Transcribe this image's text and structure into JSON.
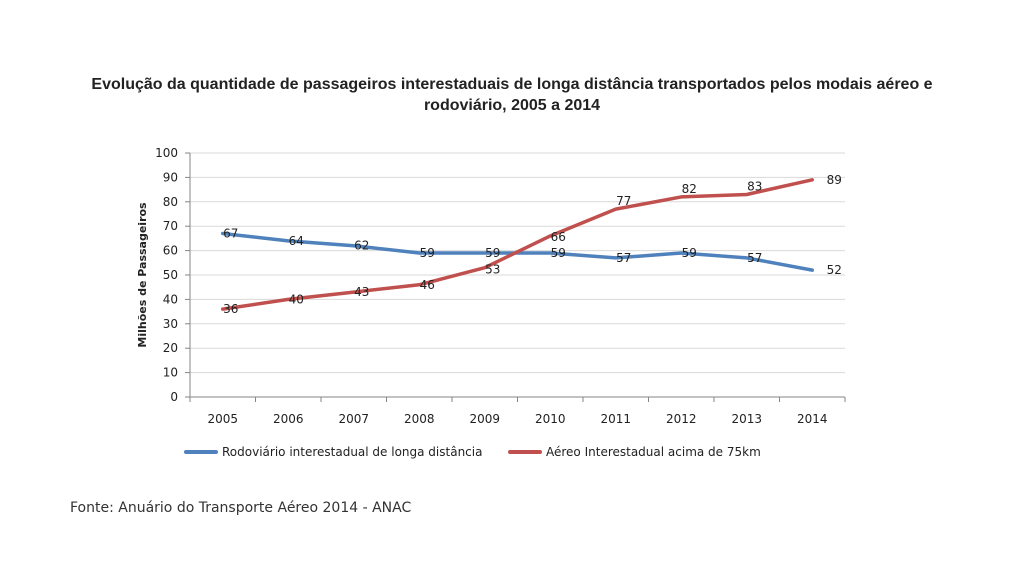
{
  "title_line1": "Evolução da quantidade de passageiros interestaduais de longa distância transportados pelos modais aéreo e",
  "title_line2": "rodoviário, 2005 a 2014",
  "source": "Fonte: Anuário do Transporte Aéreo 2014 - ANAC",
  "colors": {
    "blue": "#4f81bd",
    "red": "#c0504d",
    "grid": "#d9d9d9",
    "axis": "#868686"
  },
  "chart_data": {
    "type": "line",
    "title": "Evolução da quantidade de passageiros interestaduais de longa distância transportados pelos modais aéreo e rodoviário, 2005 a 2014",
    "xlabel": "",
    "ylabel": "Milhões de Passageiros",
    "categories": [
      "2005",
      "2006",
      "2007",
      "2008",
      "2009",
      "2010",
      "2011",
      "2012",
      "2013",
      "2014"
    ],
    "yticks": [
      "0",
      "10",
      "20",
      "30",
      "40",
      "50",
      "60",
      "70",
      "80",
      "90",
      "100"
    ],
    "ylim": [
      0,
      100
    ],
    "grid": true,
    "legend": "bottom",
    "series": [
      {
        "name": "Rodoviário interestadual de longa distância",
        "color": "#4f81bd",
        "values": [
          67,
          64,
          62,
          59,
          59,
          59,
          57,
          59,
          57,
          52
        ],
        "labels": [
          "67",
          "64",
          "62",
          "59",
          "59",
          "59",
          "57",
          "59",
          "57",
          "52"
        ]
      },
      {
        "name": "Aéreo Interestadual acima de 75km",
        "color": "#c0504d",
        "values": [
          36,
          40,
          43,
          46,
          53,
          66,
          77,
          82,
          83,
          89
        ],
        "labels": [
          "36",
          "40",
          "43",
          "46",
          "53",
          "66",
          "77",
          "82",
          "83",
          "89"
        ]
      }
    ]
  }
}
